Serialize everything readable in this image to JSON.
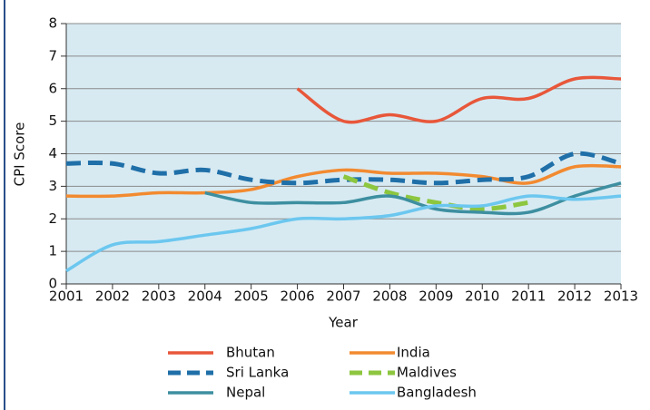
{
  "chart_data": {
    "type": "line",
    "xlabel": "Year",
    "ylabel": "CPI Score",
    "x": [
      2001,
      2002,
      2003,
      2004,
      2005,
      2006,
      2007,
      2008,
      2009,
      2010,
      2011,
      2012,
      2013
    ],
    "xlim": [
      2001,
      2013
    ],
    "xticks": [
      2001,
      2002,
      2003,
      2004,
      2005,
      2006,
      2007,
      2008,
      2009,
      2010,
      2011,
      2012,
      2013
    ],
    "ylim": [
      0,
      8
    ],
    "yticks": [
      0,
      1,
      2,
      3,
      4,
      5,
      6,
      7,
      8
    ],
    "grid": true,
    "series": [
      {
        "name": "Bhutan",
        "color": "#e8573a",
        "values": [
          null,
          null,
          null,
          null,
          null,
          6.0,
          5.0,
          5.2,
          5.0,
          5.7,
          5.7,
          6.3,
          6.3
        ]
      },
      {
        "name": "India",
        "color": "#f28a30",
        "values": [
          2.7,
          2.7,
          2.8,
          2.8,
          2.9,
          3.3,
          3.5,
          3.4,
          3.4,
          3.3,
          3.1,
          3.6,
          3.6
        ]
      },
      {
        "name": "Sri Lanka",
        "color": "#1f6fa8",
        "dashed": true,
        "values": [
          3.7,
          3.7,
          3.4,
          3.5,
          3.2,
          3.1,
          3.2,
          3.2,
          3.1,
          3.2,
          3.3,
          4.0,
          3.7
        ]
      },
      {
        "name": "Maldives",
        "color": "#8dc63f",
        "dashed": true,
        "values": [
          null,
          null,
          null,
          null,
          null,
          null,
          3.3,
          2.8,
          2.5,
          2.3,
          2.5,
          null,
          null
        ]
      },
      {
        "name": "Nepal",
        "color": "#3d8fa0",
        "values": [
          null,
          null,
          null,
          2.8,
          2.5,
          2.5,
          2.5,
          2.7,
          2.3,
          2.2,
          2.2,
          2.7,
          3.1
        ]
      },
      {
        "name": "Bangladesh",
        "color": "#6cc7ef",
        "values": [
          0.4,
          1.2,
          1.3,
          1.5,
          1.7,
          2.0,
          2.0,
          2.1,
          2.4,
          2.4,
          2.7,
          2.6,
          2.7
        ]
      }
    ]
  }
}
